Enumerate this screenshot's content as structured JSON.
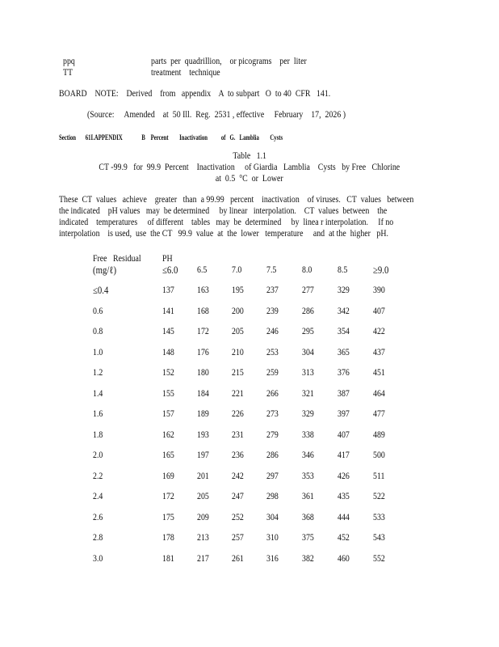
{
  "definitions": [
    {
      "abbr": "ppq",
      "meaning": "parts  per  quadrillion,    or picograms    per  liter"
    },
    {
      "abbr": "TT",
      "meaning": "treatment    technique"
    }
  ],
  "board_note": "BOARD    NOTE:    Derived    from   appendix    A  to subpart   O  to 40  CFR   141.",
  "source": "(Source:     Amended    at  50 Ill.  Reg.  2531 , effective     February    17,  2026 )",
  "section_heading": "Section       61I.APPENDIX              B    Percent        Inactivation          of   G.   Lamblia        Cysts",
  "table": {
    "number": "Table   1.1",
    "title_line1": "CT -99.9   for  99.9  Percent    Inactivation     of Giardia   Lamblia    Cysts   by Free   Chlorine",
    "title_line2": "at  0.5  °C  or  Lower",
    "paragraph": [
      "These  CT  values   achieve    greater   than  a 99.99   percent    inactivation    of viruses.   CT  values   between",
      "the indicated    pH values   may  be determined     by linear   interpolation.    CT  values  between    the",
      "indicated    temperatures     of different    tables   may  be  determined     by  linea r interpolation.     If no",
      "interpolation    is used,  use  the CT   99.9  value  at  the  lower   temperature     and  at the  higher   pH."
    ],
    "row_header_line1": "Free   Residual",
    "row_header_line2": "(mg/ℓ)",
    "col_group_header": "PH",
    "columns": [
      "≤6.0",
      "6.5",
      "7.0",
      "7.5",
      "8.0",
      "8.5",
      "≥9.0"
    ],
    "rows": [
      {
        "label": "≤0.4",
        "values": [
          "137",
          "163",
          "195",
          "237",
          "277",
          "329",
          "390"
        ]
      },
      {
        "label": "0.6",
        "values": [
          "141",
          "168",
          "200",
          "239",
          "286",
          "342",
          "407"
        ]
      },
      {
        "label": "0.8",
        "values": [
          "145",
          "172",
          "205",
          "246",
          "295",
          "354",
          "422"
        ]
      },
      {
        "label": "1.0",
        "values": [
          "148",
          "176",
          "210",
          "253",
          "304",
          "365",
          "437"
        ]
      },
      {
        "label": "1.2",
        "values": [
          "152",
          "180",
          "215",
          "259",
          "313",
          "376",
          "451"
        ]
      },
      {
        "label": "1.4",
        "values": [
          "155",
          "184",
          "221",
          "266",
          "321",
          "387",
          "464"
        ]
      },
      {
        "label": "1.6",
        "values": [
          "157",
          "189",
          "226",
          "273",
          "329",
          "397",
          "477"
        ]
      },
      {
        "label": "1.8",
        "values": [
          "162",
          "193",
          "231",
          "279",
          "338",
          "407",
          "489"
        ]
      },
      {
        "label": "2.0",
        "values": [
          "165",
          "197",
          "236",
          "286",
          "346",
          "417",
          "500"
        ]
      },
      {
        "label": "2.2",
        "values": [
          "169",
          "201",
          "242",
          "297",
          "353",
          "426",
          "511"
        ]
      },
      {
        "label": "2.4",
        "values": [
          "172",
          "205",
          "247",
          "298",
          "361",
          "435",
          "522"
        ]
      },
      {
        "label": "2.6",
        "values": [
          "175",
          "209",
          "252",
          "304",
          "368",
          "444",
          "533"
        ]
      },
      {
        "label": "2.8",
        "values": [
          "178",
          "213",
          "257",
          "310",
          "375",
          "452",
          "543"
        ]
      },
      {
        "label": "3.0",
        "values": [
          "181",
          "217",
          "261",
          "316",
          "382",
          "460",
          "552"
        ]
      }
    ]
  }
}
